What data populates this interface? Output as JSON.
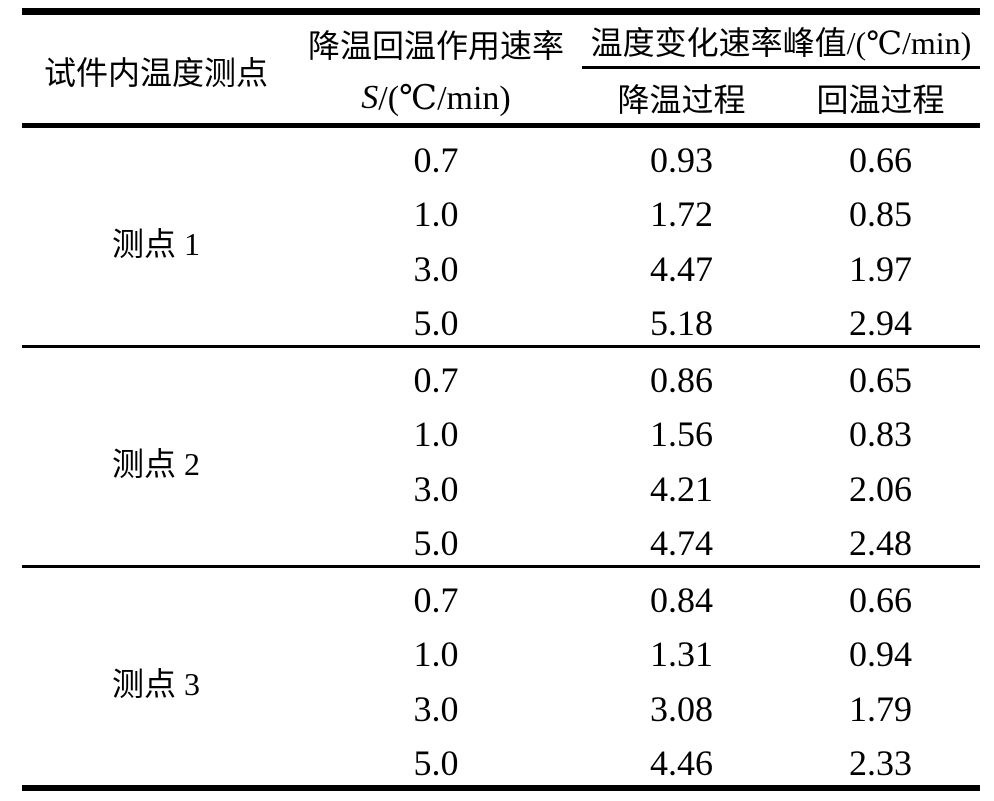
{
  "page": {
    "background": "#ffffff",
    "text_color": "#000000",
    "rule_color": "#000000"
  },
  "table": {
    "header": {
      "specimen_point": "试件内温度测点",
      "rate_title": "降温回温作用速率",
      "rate_symbol": "S",
      "rate_unit": "/(℃/min)",
      "peak_group_title": "温度变化速率峰值/(℃/min)",
      "cooling_process": "降温过程",
      "rewarming_process": "回温过程"
    },
    "sections": [
      {
        "point_label": "测点 1",
        "rows": [
          {
            "rate": "0.7",
            "cooling_peak": "0.93",
            "rewarming_peak": "0.66"
          },
          {
            "rate": "1.0",
            "cooling_peak": "1.72",
            "rewarming_peak": "0.85"
          },
          {
            "rate": "3.0",
            "cooling_peak": "4.47",
            "rewarming_peak": "1.97"
          },
          {
            "rate": "5.0",
            "cooling_peak": "5.18",
            "rewarming_peak": "2.94"
          }
        ]
      },
      {
        "point_label": "测点 2",
        "rows": [
          {
            "rate": "0.7",
            "cooling_peak": "0.86",
            "rewarming_peak": "0.65"
          },
          {
            "rate": "1.0",
            "cooling_peak": "1.56",
            "rewarming_peak": "0.83"
          },
          {
            "rate": "3.0",
            "cooling_peak": "4.21",
            "rewarming_peak": "2.06"
          },
          {
            "rate": "5.0",
            "cooling_peak": "4.74",
            "rewarming_peak": "2.48"
          }
        ]
      },
      {
        "point_label": "测点 3",
        "rows": [
          {
            "rate": "0.7",
            "cooling_peak": "0.84",
            "rewarming_peak": "0.66"
          },
          {
            "rate": "1.0",
            "cooling_peak": "1.31",
            "rewarming_peak": "0.94"
          },
          {
            "rate": "3.0",
            "cooling_peak": "3.08",
            "rewarming_peak": "1.79"
          },
          {
            "rate": "5.0",
            "cooling_peak": "4.46",
            "rewarming_peak": "2.33"
          }
        ]
      }
    ]
  },
  "chart_data": {
    "type": "table",
    "columns": [
      "试件内温度测点",
      "降温回温作用速率 S/(℃/min)",
      "温度变化速率峰值/(℃/min) 降温过程",
      "温度变化速率峰值/(℃/min) 回温过程"
    ],
    "rows": [
      [
        "测点 1",
        0.7,
        0.93,
        0.66
      ],
      [
        "测点 1",
        1.0,
        1.72,
        0.85
      ],
      [
        "测点 1",
        3.0,
        4.47,
        1.97
      ],
      [
        "测点 1",
        5.0,
        5.18,
        2.94
      ],
      [
        "测点 2",
        0.7,
        0.86,
        0.65
      ],
      [
        "测点 2",
        1.0,
        1.56,
        0.83
      ],
      [
        "测点 2",
        3.0,
        4.21,
        2.06
      ],
      [
        "测点 2",
        5.0,
        4.74,
        2.48
      ],
      [
        "测点 3",
        0.7,
        0.84,
        0.66
      ],
      [
        "测点 3",
        1.0,
        1.31,
        0.94
      ],
      [
        "测点 3",
        3.0,
        3.08,
        1.79
      ],
      [
        "测点 3",
        5.0,
        4.46,
        2.33
      ]
    ]
  }
}
